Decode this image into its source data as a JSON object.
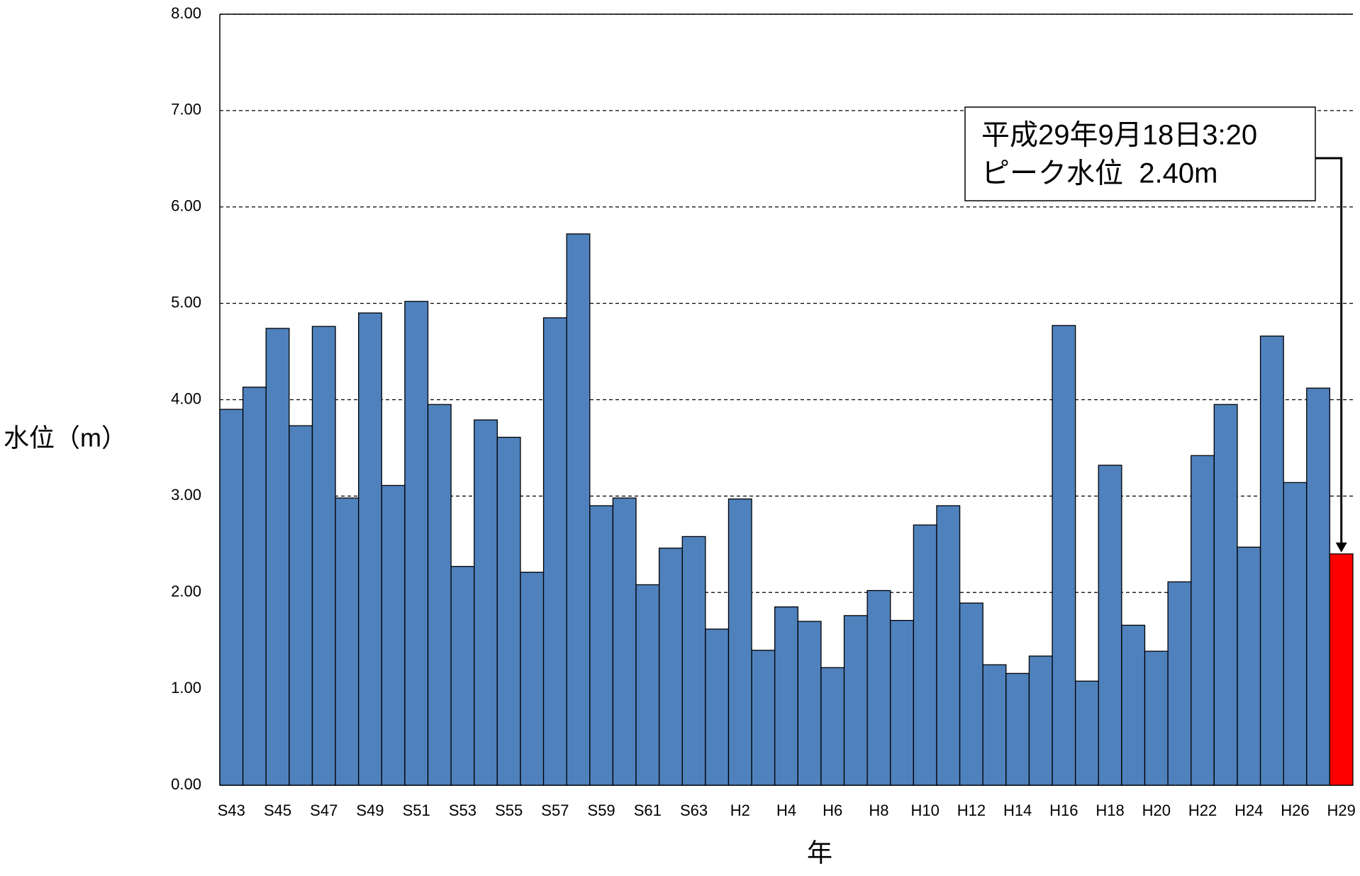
{
  "chart_data": {
    "type": "bar",
    "categories": [
      "S43",
      null,
      "S45",
      null,
      "S47",
      null,
      "S49",
      null,
      "S51",
      null,
      "S53",
      null,
      "S55",
      null,
      "S57",
      null,
      "S59",
      null,
      "S61",
      null,
      "S63",
      null,
      "H2",
      null,
      "H4",
      null,
      "H6",
      null,
      "H8",
      null,
      "H10",
      null,
      "H12",
      null,
      "H14",
      null,
      "H16",
      null,
      "H18",
      null,
      "H20",
      null,
      "H22",
      null,
      "H24",
      null,
      "H26",
      null,
      "H29"
    ],
    "values": [
      3.9,
      4.13,
      4.74,
      3.73,
      4.76,
      2.98,
      4.9,
      3.11,
      5.02,
      3.95,
      2.27,
      3.79,
      3.61,
      2.21,
      4.85,
      5.72,
      2.9,
      2.98,
      2.08,
      2.46,
      2.58,
      1.62,
      2.97,
      1.4,
      1.85,
      1.7,
      1.22,
      1.76,
      2.02,
      1.71,
      2.7,
      2.9,
      1.89,
      1.25,
      1.16,
      1.34,
      4.77,
      1.08,
      3.32,
      1.66,
      1.39,
      2.11,
      3.42,
      3.95,
      2.47,
      4.66,
      3.14,
      4.12,
      2.4
    ],
    "colors": [
      "#4f81bd",
      "#4f81bd",
      "#4f81bd",
      "#4f81bd",
      "#4f81bd",
      "#4f81bd",
      "#4f81bd",
      "#4f81bd",
      "#4f81bd",
      "#4f81bd",
      "#4f81bd",
      "#4f81bd",
      "#4f81bd",
      "#4f81bd",
      "#4f81bd",
      "#4f81bd",
      "#4f81bd",
      "#4f81bd",
      "#4f81bd",
      "#4f81bd",
      "#4f81bd",
      "#4f81bd",
      "#4f81bd",
      "#4f81bd",
      "#4f81bd",
      "#4f81bd",
      "#4f81bd",
      "#4f81bd",
      "#4f81bd",
      "#4f81bd",
      "#4f81bd",
      "#4f81bd",
      "#4f81bd",
      "#4f81bd",
      "#4f81bd",
      "#4f81bd",
      "#4f81bd",
      "#4f81bd",
      "#4f81bd",
      "#4f81bd",
      "#4f81bd",
      "#4f81bd",
      "#4f81bd",
      "#4f81bd",
      "#4f81bd",
      "#4f81bd",
      "#4f81bd",
      "#4f81bd",
      "#ff0000"
    ],
    "y_label": "水位（m）",
    "x_label": "年",
    "annotation": [
      "平成29年9月18日3:20",
      "ピーク水位  2.40m"
    ],
    "ylim": [
      0,
      8
    ],
    "yticks": [
      {
        "value": 0,
        "label": "0.00"
      },
      {
        "value": 1,
        "label": "1.00"
      },
      {
        "value": 2,
        "label": "2.00"
      },
      {
        "value": 3,
        "label": "3.00"
      },
      {
        "value": 4,
        "label": "4.00"
      },
      {
        "value": 5,
        "label": "5.00"
      },
      {
        "value": 6,
        "label": "6.00"
      },
      {
        "value": 7,
        "label": "7.00"
      },
      {
        "value": 8,
        "label": "8.00"
      }
    ],
    "grid": true
  }
}
